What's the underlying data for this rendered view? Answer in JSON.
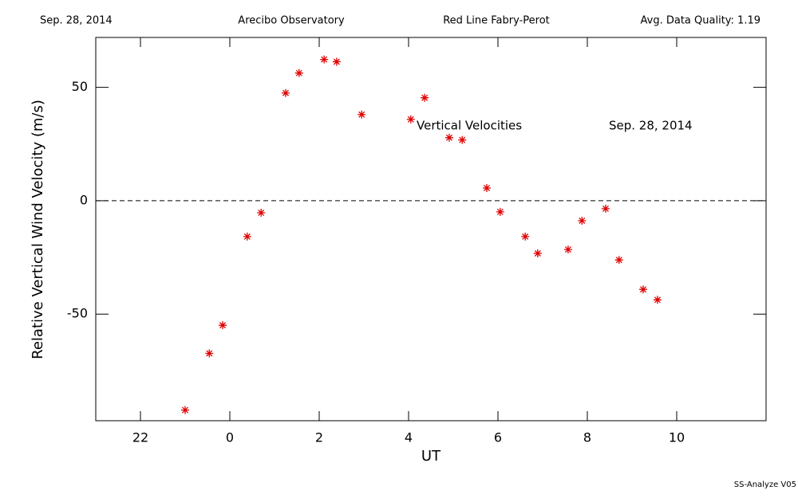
{
  "chart_data": {
    "type": "scatter",
    "header": {
      "date": "Sep. 28, 2014",
      "site": "Arecibo Observatory",
      "instrument": "Red Line Fabry-Perot",
      "quality": "Avg. Data Quality: 1.19"
    },
    "x_label": "UT",
    "y_label": "Relative Vertical Wind Velocity (m/s)",
    "annotations": [
      "Vertical Velocities",
      "Sep. 28, 2014"
    ],
    "footer": "SS-Analyze V05",
    "xlim": [
      21,
      36
    ],
    "xticks": [
      22,
      {
        "value": 24,
        "label": "0"
      },
      {
        "value": 26,
        "label": "2"
      },
      {
        "value": 28,
        "label": "4"
      },
      {
        "value": 30,
        "label": "6"
      },
      {
        "value": 32,
        "label": "8"
      },
      {
        "value": 34,
        "label": "10"
      }
    ],
    "ylim": [
      -97,
      72
    ],
    "yticks": [
      -50,
      0,
      50
    ],
    "reference_line": 0,
    "series": [
      {
        "color": "#e00000",
        "x": [
          23.0,
          23.54,
          23.84,
          24.39,
          24.7,
          25.25,
          25.55,
          26.11,
          26.39,
          26.95,
          28.05,
          28.36,
          28.91,
          29.2,
          29.75,
          30.05,
          30.61,
          30.89,
          31.57,
          31.88,
          32.41,
          32.71,
          33.25,
          33.57
        ],
        "values": [
          -92.3,
          -67.3,
          -54.9,
          -15.8,
          -5.3,
          47.5,
          56.3,
          62.3,
          61.3,
          38.0,
          35.9,
          45.4,
          27.8,
          26.8,
          5.6,
          -4.9,
          -15.8,
          -23.2,
          -21.5,
          -8.8,
          -3.5,
          -26.1,
          -39.1,
          -43.7
        ]
      }
    ]
  }
}
